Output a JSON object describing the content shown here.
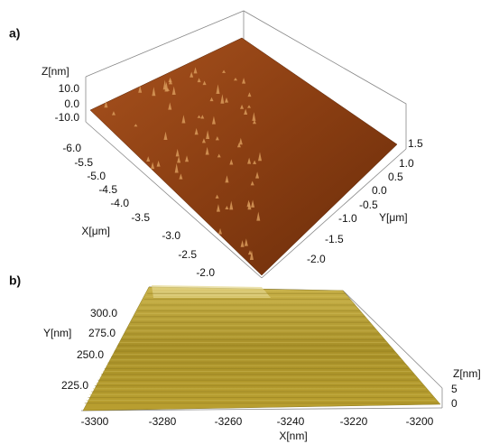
{
  "panel_a": {
    "label": "a)",
    "z_axis": {
      "title": "Z[nm]",
      "ticks": [
        "10.0",
        "0.0",
        "-10.0"
      ]
    },
    "x_axis": {
      "title": "X[μm]",
      "ticks": [
        "-6.0",
        "-5.5",
        "-5.0",
        "-4.5",
        "-4.0",
        "-3.5",
        "-3.0",
        "-2.5",
        "-2.0"
      ]
    },
    "y_axis": {
      "title": "Y[μm]",
      "ticks": [
        "1.5",
        "1.0",
        "0.5",
        "0.0",
        "-0.5",
        "-1.0",
        "-1.5",
        "-2.0"
      ]
    }
  },
  "panel_b": {
    "label": "b)",
    "y_axis": {
      "title": "Y[nm]",
      "ticks": [
        "300.0",
        "275.0",
        "250.0",
        "225.0"
      ]
    },
    "x_axis": {
      "title": "X[nm]",
      "ticks": [
        "-3300",
        "-3280",
        "-3260",
        "-3240",
        "-3220",
        "-3200"
      ]
    },
    "z_axis": {
      "title": "Z[nm]",
      "ticks": [
        "5",
        "0"
      ]
    }
  }
}
